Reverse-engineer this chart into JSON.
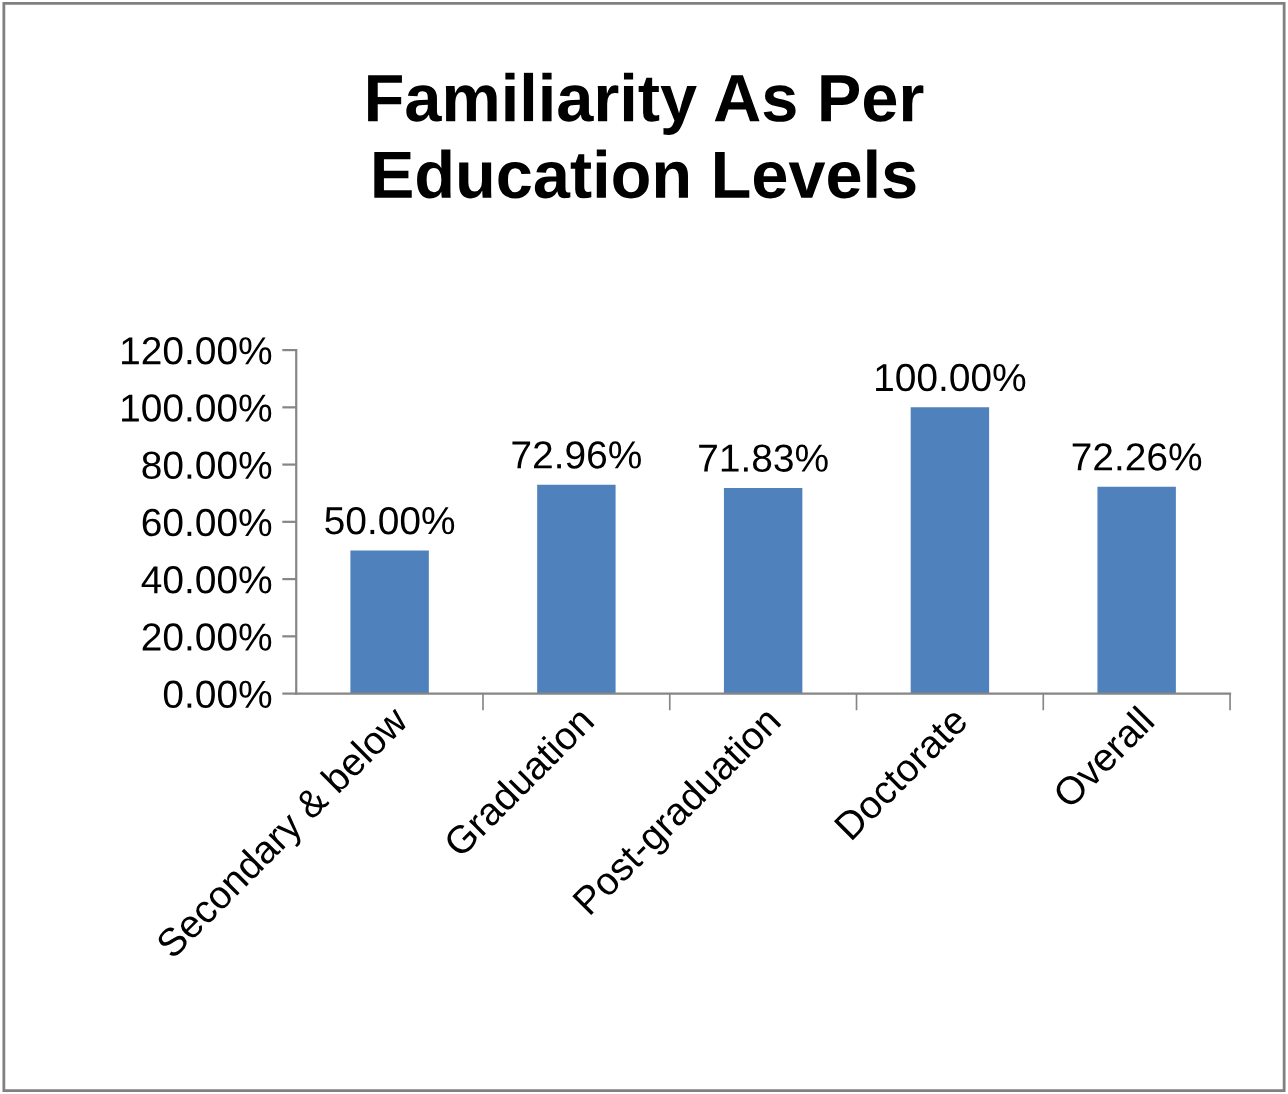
{
  "chart_data": {
    "type": "bar",
    "title": "Familiarity As Per\nEducation Levels",
    "categories": [
      "Secondary & below",
      "Graduation",
      "Post-graduation",
      "Doctorate",
      "Overall"
    ],
    "values": [
      50.0,
      72.96,
      71.83,
      100.0,
      72.26
    ],
    "value_labels": [
      "50.00%",
      "72.96%",
      "71.83%",
      "100.00%",
      "72.26%"
    ],
    "color": "#4f81bd",
    "ylim": [
      0,
      120
    ],
    "yticks": [
      {
        "value": 0,
        "label": "0.00%"
      },
      {
        "value": 20,
        "label": "20.00%"
      },
      {
        "value": 40,
        "label": "40.00%"
      },
      {
        "value": 60,
        "label": "60.00%"
      },
      {
        "value": 80,
        "label": "80.00%"
      },
      {
        "value": 100,
        "label": "100.00%"
      },
      {
        "value": 120,
        "label": "120.00%"
      }
    ],
    "grid": false,
    "legend": false
  }
}
